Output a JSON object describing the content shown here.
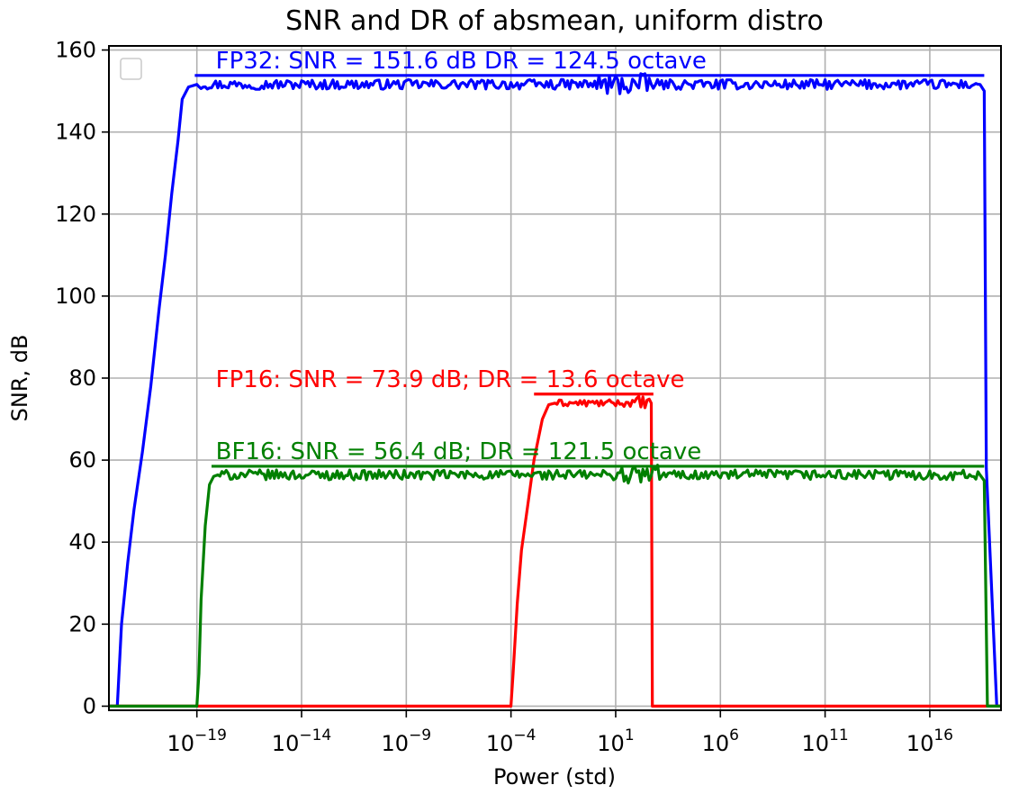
{
  "chart_data": {
    "type": "line",
    "title": "SNR and DR of absmean, uniform distro",
    "xlabel": "Power (std)",
    "ylabel": "SNR, dB",
    "xscale": "log",
    "xlim_log10": [
      -23.2,
      19.4
    ],
    "ylim": [
      -1,
      161
    ],
    "grid": true,
    "legend": {
      "position": "top-left",
      "entries": []
    },
    "x_ticks": [
      {
        "exp": -19,
        "base": "10",
        "sup": "−19"
      },
      {
        "exp": -14,
        "base": "10",
        "sup": "−14"
      },
      {
        "exp": -9,
        "base": "10",
        "sup": "−9"
      },
      {
        "exp": -4,
        "base": "10",
        "sup": "−4"
      },
      {
        "exp": 1,
        "base": "10",
        "sup": "1"
      },
      {
        "exp": 6,
        "base": "10",
        "sup": "6"
      },
      {
        "exp": 11,
        "base": "10",
        "sup": "11"
      },
      {
        "exp": 16,
        "base": "10",
        "sup": "16"
      }
    ],
    "y_ticks": [
      {
        "value": 0,
        "label": "0"
      },
      {
        "value": 20,
        "label": "20"
      },
      {
        "value": 40,
        "label": "40"
      },
      {
        "value": 60,
        "label": "60"
      },
      {
        "value": 80,
        "label": "80"
      },
      {
        "value": 100,
        "label": "100"
      },
      {
        "value": 120,
        "label": "120"
      },
      {
        "value": 140,
        "label": "140"
      },
      {
        "value": 160,
        "label": "160"
      }
    ],
    "series": [
      {
        "key": "fp32",
        "color": "#0000ff",
        "x_log10": [
          -23.2,
          -22.8,
          -22.6,
          -22.3,
          -22.0,
          -21.6,
          -21.2,
          -20.8,
          -20.5,
          -20.2,
          -19.9,
          -19.7,
          -19.4,
          -19.0
        ],
        "y": [
          0,
          0,
          20,
          35,
          48,
          62,
          78,
          97,
          110,
          125,
          138,
          148,
          151,
          151.6
        ],
        "plateau": {
          "from_log10": -19.0,
          "to_log10": 18.4,
          "mean": 151.6,
          "amplitude": 1.2,
          "noisy_region_log10": [
            0.0,
            2.6
          ]
        },
        "tail": {
          "x_log10": [
            18.4,
            18.6,
            18.7,
            19.2,
            19.4
          ],
          "y": [
            151.6,
            150.0,
            58,
            0,
            0
          ]
        },
        "ref_line": {
          "from_log10": -19.1,
          "to_log10": 18.6,
          "y": 153.8
        },
        "annotation": {
          "text": "FP32: SNR = 151.6 dB  DR = 124.5 octave",
          "x_log10": -18.1,
          "y": 155.5
        }
      },
      {
        "key": "fp16",
        "color": "#ff0000",
        "x_log10": [
          -23.2,
          -4.0,
          -3.9,
          -3.7,
          -3.5,
          -3.2,
          -2.9,
          -2.5,
          -2.2,
          -1.9
        ],
        "y": [
          0,
          0,
          8,
          25,
          38,
          49,
          60,
          70,
          73.5,
          73.9
        ],
        "plateau": {
          "from_log10": -1.9,
          "to_log10": 2.7,
          "mean": 73.9,
          "amplitude": 0.8,
          "noisy_region_log10": [
            1.8,
            2.7
          ]
        },
        "tail": {
          "x_log10": [
            2.7,
            2.75,
            19.4
          ],
          "y": [
            73.9,
            0,
            0
          ]
        },
        "ref_line": {
          "from_log10": -2.9,
          "to_log10": 2.8,
          "y": 76.1
        },
        "annotation": {
          "text": "FP16: SNR = 73.9 dB; DR = 13.6 octave",
          "x_log10": -18.1,
          "y": 77.8
        }
      },
      {
        "key": "bf16",
        "color": "#008000",
        "x_log10": [
          -23.2,
          -19.0,
          -18.9,
          -18.8,
          -18.6,
          -18.4,
          -18.2,
          -18.0
        ],
        "y": [
          0,
          0,
          8,
          26,
          44,
          54,
          56,
          56.4
        ],
        "plateau": {
          "from_log10": -18.0,
          "to_log10": 18.4,
          "mean": 56.4,
          "amplitude": 1.2,
          "noisy_region_log10": [
            1.0,
            3.0
          ]
        },
        "tail": {
          "x_log10": [
            18.4,
            18.6,
            18.75,
            19.4
          ],
          "y": [
            56.4,
            55,
            0,
            0
          ]
        },
        "ref_line": {
          "from_log10": -18.3,
          "to_log10": 18.6,
          "y": 58.5
        },
        "annotation": {
          "text": "BF16: SNR = 56.4 dB; DR = 121.5 octave",
          "x_log10": -18.1,
          "y": 60.2
        }
      }
    ]
  }
}
